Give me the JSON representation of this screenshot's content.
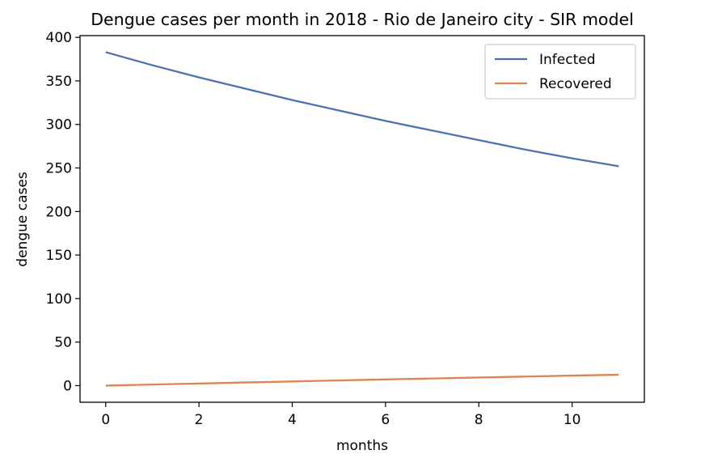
{
  "chart_data": {
    "type": "line",
    "title": "Dengue cases per month in 2018 - Rio de Janeiro city - SIR model",
    "xlabel": "months",
    "ylabel": "dengue cases",
    "xlim": [
      -0.55,
      11.55
    ],
    "ylim": [
      -19.1,
      402
    ],
    "xticks": [
      0,
      2,
      4,
      6,
      8,
      10
    ],
    "yticks": [
      0,
      50,
      100,
      150,
      200,
      250,
      300,
      350,
      400
    ],
    "grid": false,
    "legend_position": "upper right",
    "x": [
      0,
      1,
      2,
      3,
      4,
      5,
      6,
      7,
      8,
      9,
      10,
      11
    ],
    "series": [
      {
        "name": "Infected",
        "color": "#4c72b0",
        "values": [
          383,
          368,
          354,
          341,
          328,
          316,
          304,
          293,
          282,
          271,
          261,
          252
        ]
      },
      {
        "name": "Recovered",
        "color": "#dd8452",
        "values": [
          0,
          1.2,
          2.4,
          3.6,
          4.8,
          6.0,
          7.1,
          8.2,
          9.3,
          10.4,
          11.5,
          12.5
        ]
      }
    ]
  }
}
